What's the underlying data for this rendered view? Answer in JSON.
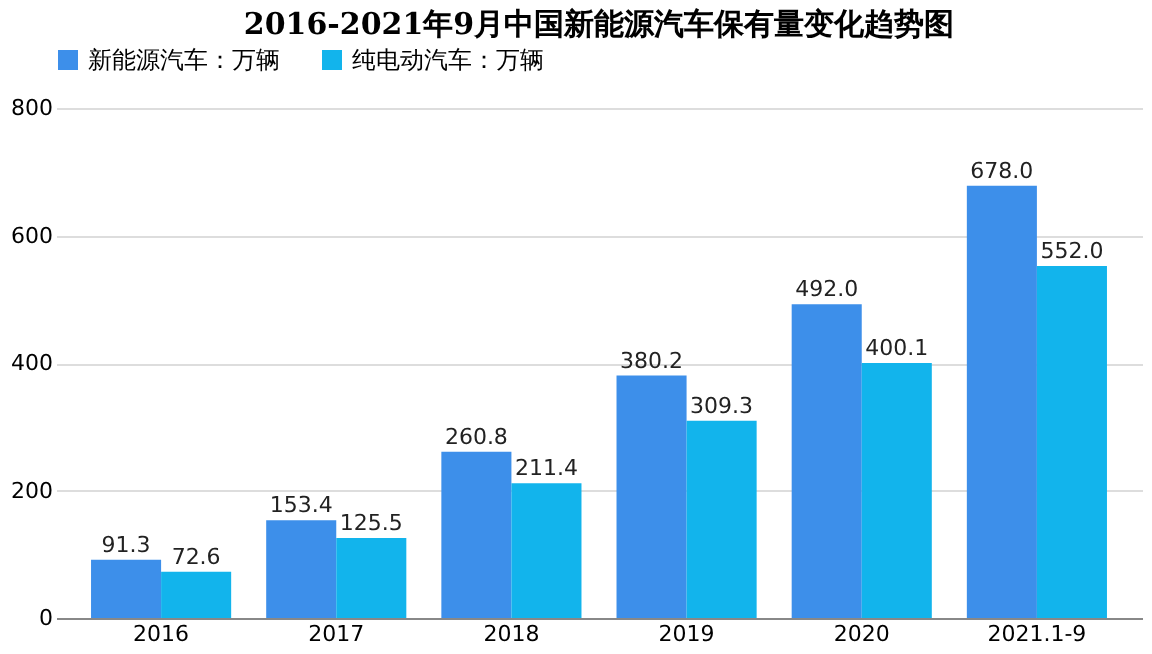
{
  "chart_data": {
    "type": "bar",
    "title": "2016-2021年9月中国新能源汽车保有量变化趋势图",
    "categories": [
      "2016",
      "2017",
      "2018",
      "2019",
      "2020",
      "2021.1-9"
    ],
    "series": [
      {
        "name": "新能源汽车：万辆",
        "color": "#3d8fea",
        "values": [
          91.3,
          153.4,
          260.8,
          380.2,
          492.0,
          678.0
        ],
        "value_labels": [
          "91.3",
          "153.4",
          "260.8",
          "380.2",
          "492.0",
          "678.0"
        ]
      },
      {
        "name": "纯电动汽车：万辆",
        "color": "#12b4ec",
        "values": [
          72.6,
          125.5,
          211.4,
          309.3,
          400.1,
          552.0
        ],
        "value_labels": [
          "72.6",
          "125.5",
          "211.4",
          "309.3",
          "400.1",
          "552.0"
        ]
      }
    ],
    "ylim": [
      0,
      800
    ],
    "yticks": [
      0,
      200,
      400,
      600,
      800
    ],
    "grid": "y",
    "legend": "top"
  }
}
